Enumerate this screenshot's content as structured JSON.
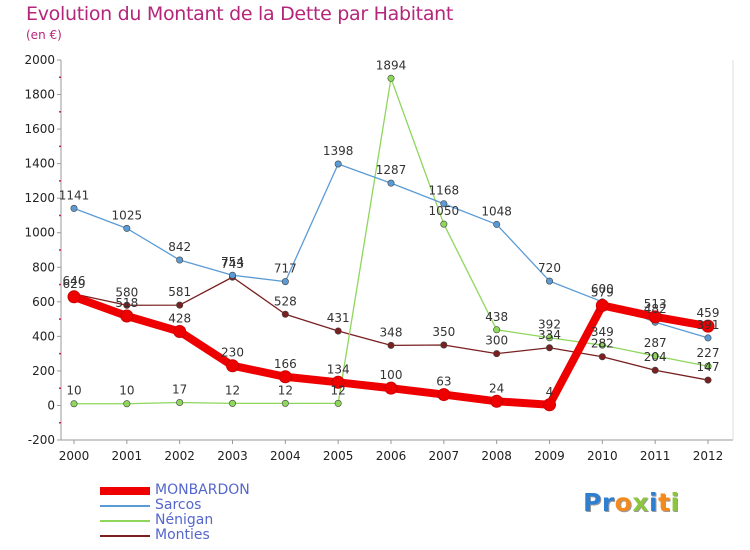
{
  "title": "Evolution du Montant de la Dette par Habitant",
  "subtitle": "(en €)",
  "logo": {
    "text": "Proxiti",
    "letters": [
      {
        "ch": "P",
        "color": "#2f7fd0"
      },
      {
        "ch": "r",
        "color": "#2f7fd0"
      },
      {
        "ch": "o",
        "color": "#f28a1e"
      },
      {
        "ch": "x",
        "color": "#8cc63f"
      },
      {
        "ch": "i",
        "color": "#2f7fd0"
      },
      {
        "ch": "t",
        "color": "#f28a1e"
      },
      {
        "ch": "i",
        "color": "#8cc63f"
      }
    ]
  },
  "chart_data": {
    "type": "line",
    "x": [
      "2000",
      "2001",
      "2002",
      "2003",
      "2004",
      "2005",
      "2006",
      "2007",
      "2008",
      "2009",
      "2010",
      "2011",
      "2012"
    ],
    "ylim": [
      -200,
      2000
    ],
    "yticks": [
      -200,
      0,
      200,
      400,
      600,
      800,
      1000,
      1200,
      1400,
      1600,
      1800,
      2000
    ],
    "grid": false,
    "legend_position": "bottom-left",
    "series": [
      {
        "name": "MONBARDON",
        "color": "#ee0000",
        "values": [
          629,
          518,
          428,
          230,
          166,
          134,
          100,
          63,
          24,
          4,
          579,
          513,
          459
        ],
        "labels": [
          "629",
          "518",
          "428",
          "230",
          "166",
          "134",
          "100",
          "63",
          "24",
          "4",
          "579",
          "513",
          "459"
        ]
      },
      {
        "name": "Sarcos",
        "color": "#5b9bd5",
        "values": [
          1141,
          1025,
          842,
          754,
          717,
          1398,
          1287,
          1168,
          1048,
          720,
          600,
          482,
          391
        ],
        "labels": [
          "1141",
          "1025",
          "842",
          "754",
          "717",
          "1398",
          "1287",
          "1168",
          "1048",
          "720",
          "600",
          "482",
          "391"
        ]
      },
      {
        "name": "Nénigan",
        "color": "#8ed65c",
        "values": [
          10,
          10,
          17,
          12,
          12,
          12,
          1894,
          1050,
          438,
          392,
          349,
          287,
          227
        ],
        "labels": [
          "10",
          "10",
          "17",
          "12",
          "12",
          "12",
          "1894",
          "1050",
          "438",
          "392",
          "349",
          "287",
          "227"
        ]
      },
      {
        "name": "Monties",
        "color": "#7a2020",
        "values": [
          646,
          580,
          581,
          743,
          528,
          431,
          348,
          350,
          300,
          334,
          282,
          204,
          147
        ],
        "labels": [
          "646",
          "580",
          "581",
          "743",
          "528",
          "431",
          "348",
          "350",
          "300",
          "334",
          "282",
          "204",
          "147"
        ]
      }
    ]
  }
}
